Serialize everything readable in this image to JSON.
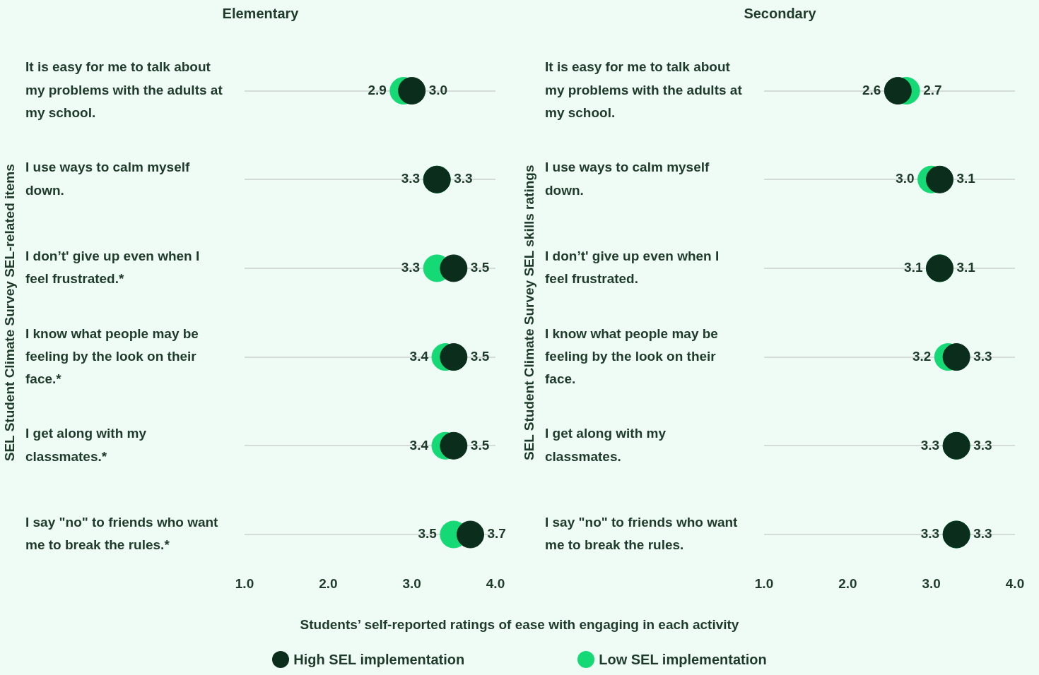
{
  "chart_data": [
    {
      "type": "scatter",
      "orientation": "horizontal",
      "title": "Elementary",
      "xlabel": "Students’ self-reported ratings of ease with engaging in each activity",
      "ylabel": "SEL Student Climate Survey SEL-related items",
      "categories": [
        "It is easy for me to talk about my problems with the adults at my school.",
        "I use ways to calm myself down.",
        "I don’t' give up even when I feel frustrated.*",
        "I know what people may be feeling by the look on their face.*",
        "I get along with my classmates.*",
        "I say \"no\" to friends who want me to break the rules.*"
      ],
      "series": [
        {
          "name": "High SEL implementation",
          "color": "#0b2e1c",
          "values": [
            3.0,
            3.3,
            3.5,
            3.5,
            3.5,
            3.7
          ],
          "value_labels": [
            "3.0",
            "3.3",
            "3.5",
            "3.5",
            "3.5",
            "3.7"
          ]
        },
        {
          "name": "Low SEL implementation",
          "color": "#14d974",
          "values": [
            2.9,
            3.3,
            3.3,
            3.4,
            3.4,
            3.5
          ],
          "value_labels": [
            "2.9",
            "3.3",
            "3.3",
            "3.4",
            "3.4",
            "3.5"
          ]
        }
      ],
      "xlim": [
        1,
        4
      ],
      "xticks": [
        {
          "value": 1,
          "label": "1.0"
        },
        {
          "value": 2,
          "label": "2.0"
        },
        {
          "value": 3,
          "label": "3.0"
        },
        {
          "value": 4,
          "label": "4.0"
        }
      ],
      "grid": "y",
      "marker": "circle",
      "legend": "bottom"
    },
    {
      "type": "scatter",
      "orientation": "horizontal",
      "title": "Secondary",
      "ylabel": "SEL Student Climate Survey SEL skills ratings",
      "categories": [
        "It is easy for me to talk about my problems with the adults at my school.",
        "I use ways to calm myself down.",
        "I don’t' give up even when I feel frustrated.",
        "I know what people may be feeling by the look on their face.",
        "I get along with my classmates.",
        "I say \"no\" to friends who want me to break the rules."
      ],
      "series": [
        {
          "color": "#0b2e1c",
          "values": [
            2.6,
            3.1,
            3.1,
            3.3,
            3.3,
            3.3
          ],
          "value_labels": [
            "2.6",
            "3.1",
            "3.1",
            "3.3",
            "3.3",
            "3.3"
          ]
        },
        {
          "color": "#14d974",
          "values": [
            2.7,
            3.0,
            3.1,
            3.2,
            3.3,
            3.3
          ],
          "value_labels": [
            "2.7",
            "3.0",
            "3.1",
            "3.2",
            "3.3",
            "3.3"
          ]
        }
      ],
      "xlim": [
        1,
        4
      ],
      "xticks": [
        {
          "value": 1,
          "label": "1.0"
        },
        {
          "value": 2,
          "label": "2.0"
        },
        {
          "value": 3,
          "label": "3.0"
        },
        {
          "value": 4,
          "label": "4.0"
        }
      ],
      "grid": "y",
      "marker": "circle"
    }
  ]
}
